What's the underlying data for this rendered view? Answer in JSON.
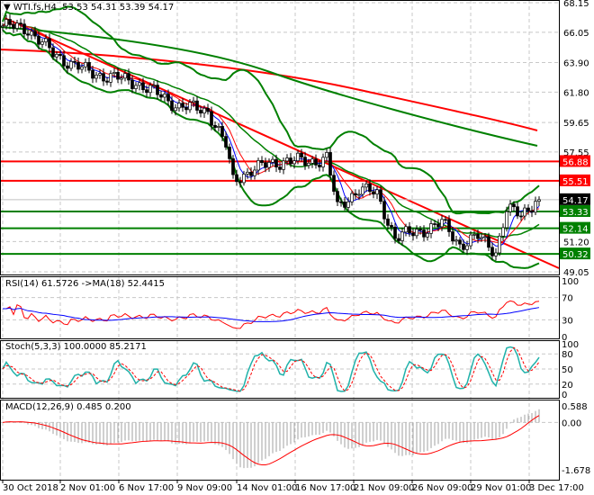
{
  "header": {
    "symbol": "WTI.fs,H4",
    "ohlc": "53.53 54.31 53.39 54.17"
  },
  "price_axis": [
    "68.15",
    "66.05",
    "63.90",
    "61.80",
    "59.65",
    "57.55",
    "51.20",
    "49.05"
  ],
  "price_range": [
    49.05,
    68.15
  ],
  "levels": [
    {
      "value": "56.88",
      "color": "#ff0000"
    },
    {
      "value": "55.51",
      "color": "#ff0000"
    },
    {
      "value": "53.33",
      "color": "#008000"
    },
    {
      "value": "52.14",
      "color": "#008000"
    },
    {
      "value": "50.32",
      "color": "#008000"
    }
  ],
  "current_price": "54.17",
  "close_anchors": [
    [
      0,
      66.5
    ],
    [
      7,
      66.3
    ],
    [
      14,
      64.5
    ],
    [
      24,
      63.2
    ],
    [
      37,
      62.5
    ],
    [
      49,
      60.8
    ],
    [
      57,
      60.5
    ],
    [
      62,
      58
    ],
    [
      64,
      55.5
    ],
    [
      69,
      56.3
    ],
    [
      79,
      57
    ],
    [
      85,
      56.8
    ],
    [
      90,
      57.2
    ],
    [
      93,
      53.5
    ],
    [
      99,
      55
    ],
    [
      104,
      54.5
    ],
    [
      109,
      51.5
    ],
    [
      114,
      51.8
    ],
    [
      122,
      52.5
    ],
    [
      127,
      51
    ],
    [
      132,
      51.5
    ],
    [
      137,
      50.5
    ],
    [
      140,
      53.5
    ],
    [
      144,
      53
    ],
    [
      148,
      54.17
    ]
  ],
  "rsi": {
    "title": "RSI(14) 61.5726  ->MA(18) 52.4415",
    "axis": [
      "100",
      "70",
      "30",
      "0"
    ]
  },
  "stoch": {
    "title": "Stoch(5,3,3) 100.0000 85.2171",
    "axis": [
      "100",
      "80",
      "50",
      "20",
      "0"
    ]
  },
  "macd": {
    "title": "MACD(12,26,9) 0.485 0.200",
    "axis": [
      "0.588",
      "0.00",
      "-1.678"
    ]
  },
  "time_axis": [
    "30 Oct 2018",
    "2 Nov 01:00",
    "6 Nov 17:00",
    "9 Nov 09:00",
    "14 Nov 01:00",
    "16 Nov 17:00",
    "21 Nov 09:00",
    "26 Nov 09:00",
    "29 Nov 01:00",
    "3 Dec 17:00"
  ]
}
